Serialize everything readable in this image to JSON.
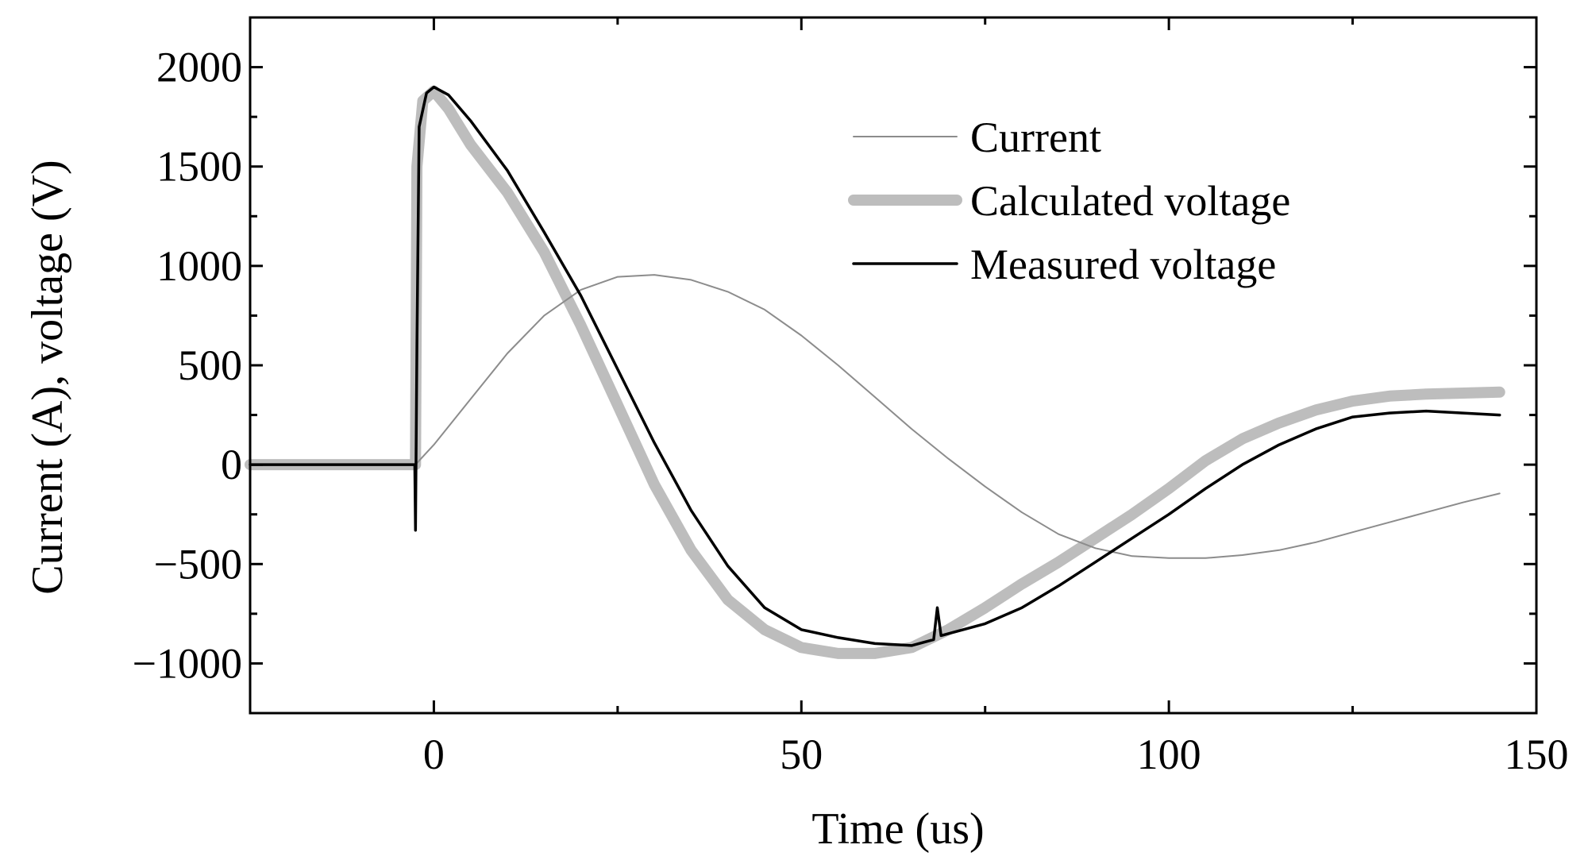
{
  "chart_data": {
    "type": "line",
    "title": "",
    "xlabel": "Time (us)",
    "ylabel": "Current (A), voltage (V)",
    "xlim": [
      -25,
      150
    ],
    "ylim": [
      -1250,
      2250
    ],
    "x_ticks": [
      0,
      50,
      100,
      150
    ],
    "x_tick_labels": [
      "0",
      "50",
      "100",
      "150"
    ],
    "y_ticks": [
      -1000,
      -500,
      0,
      500,
      1000,
      1500,
      2000
    ],
    "y_tick_labels": [
      "−1000",
      "−500",
      "0",
      "500",
      "1000",
      "1500",
      "2000"
    ],
    "grid": false,
    "legend_position": "top-right",
    "series": [
      {
        "name": "Current",
        "color": "#8c8c8c",
        "style": "thin",
        "points": [
          [
            -25,
            0
          ],
          [
            -2.5,
            0
          ],
          [
            0,
            100
          ],
          [
            5,
            330
          ],
          [
            10,
            560
          ],
          [
            15,
            750
          ],
          [
            20,
            880
          ],
          [
            25,
            945
          ],
          [
            30,
            955
          ],
          [
            35,
            930
          ],
          [
            40,
            870
          ],
          [
            45,
            780
          ],
          [
            50,
            650
          ],
          [
            55,
            500
          ],
          [
            60,
            340
          ],
          [
            65,
            180
          ],
          [
            70,
            30
          ],
          [
            75,
            -110
          ],
          [
            80,
            -240
          ],
          [
            85,
            -350
          ],
          [
            90,
            -420
          ],
          [
            95,
            -460
          ],
          [
            100,
            -470
          ],
          [
            105,
            -470
          ],
          [
            110,
            -455
          ],
          [
            115,
            -430
          ],
          [
            120,
            -390
          ],
          [
            125,
            -340
          ],
          [
            130,
            -290
          ],
          [
            135,
            -240
          ],
          [
            140,
            -190
          ],
          [
            145,
            -145
          ]
        ]
      },
      {
        "name": "Calculated voltage",
        "color": "#bdbdbd",
        "style": "thick",
        "points": [
          [
            -25,
            0
          ],
          [
            -2.5,
            0
          ],
          [
            -2.3,
            1500
          ],
          [
            -1.5,
            1830
          ],
          [
            0,
            1880
          ],
          [
            2,
            1790
          ],
          [
            5,
            1610
          ],
          [
            10,
            1370
          ],
          [
            15,
            1070
          ],
          [
            20,
            700
          ],
          [
            25,
            300
          ],
          [
            30,
            -100
          ],
          [
            35,
            -430
          ],
          [
            40,
            -680
          ],
          [
            45,
            -830
          ],
          [
            50,
            -920
          ],
          [
            55,
            -950
          ],
          [
            60,
            -950
          ],
          [
            65,
            -920
          ],
          [
            70,
            -830
          ],
          [
            75,
            -720
          ],
          [
            80,
            -600
          ],
          [
            85,
            -490
          ],
          [
            90,
            -370
          ],
          [
            95,
            -250
          ],
          [
            100,
            -120
          ],
          [
            105,
            20
          ],
          [
            110,
            130
          ],
          [
            115,
            210
          ],
          [
            120,
            275
          ],
          [
            125,
            320
          ],
          [
            130,
            345
          ],
          [
            135,
            355
          ],
          [
            140,
            360
          ],
          [
            145,
            365
          ]
        ]
      },
      {
        "name": "Measured voltage",
        "color": "#000000",
        "style": "normal",
        "points": [
          [
            -25,
            0
          ],
          [
            -2.6,
            0
          ],
          [
            -2.5,
            -330
          ],
          [
            -2.3,
            600
          ],
          [
            -2,
            1700
          ],
          [
            -1,
            1870
          ],
          [
            0,
            1900
          ],
          [
            2,
            1860
          ],
          [
            5,
            1730
          ],
          [
            10,
            1480
          ],
          [
            15,
            1170
          ],
          [
            20,
            850
          ],
          [
            25,
            480
          ],
          [
            30,
            110
          ],
          [
            35,
            -230
          ],
          [
            40,
            -510
          ],
          [
            45,
            -720
          ],
          [
            50,
            -830
          ],
          [
            55,
            -870
          ],
          [
            60,
            -900
          ],
          [
            65,
            -910
          ],
          [
            68,
            -880
          ],
          [
            68.5,
            -720
          ],
          [
            69,
            -860
          ],
          [
            75,
            -800
          ],
          [
            80,
            -720
          ],
          [
            85,
            -610
          ],
          [
            90,
            -490
          ],
          [
            95,
            -370
          ],
          [
            100,
            -250
          ],
          [
            105,
            -120
          ],
          [
            110,
            0
          ],
          [
            115,
            100
          ],
          [
            120,
            180
          ],
          [
            125,
            240
          ],
          [
            130,
            260
          ],
          [
            135,
            270
          ],
          [
            140,
            260
          ],
          [
            145,
            250
          ]
        ]
      }
    ]
  }
}
